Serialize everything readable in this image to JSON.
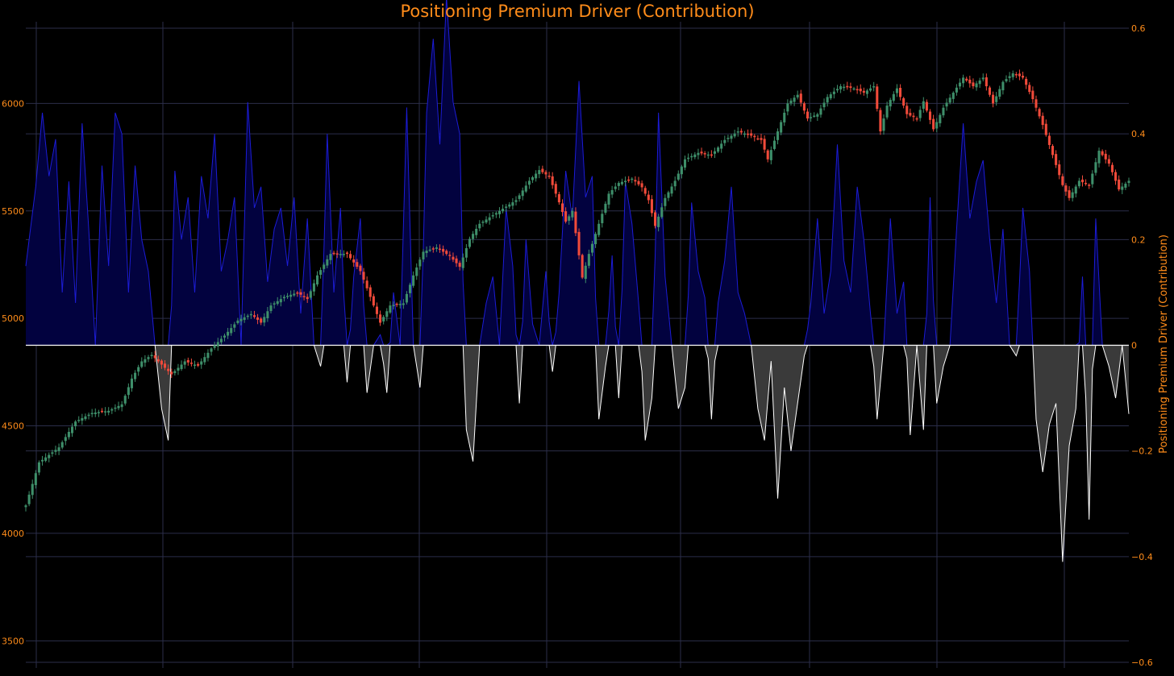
{
  "chart_data": {
    "type": "candlestick",
    "title": "Positioning Premium Driver (Contribution)",
    "y_left": {
      "label": "",
      "ticks": [
        3500,
        4000,
        4500,
        5000,
        5500,
        6000
      ],
      "range": [
        3400,
        6350
      ]
    },
    "y_right": {
      "label": "Positioning Premium Driver (Contribution)",
      "ticks": [
        0.6,
        0.4,
        0.2,
        0,
        -0.2,
        -0.4,
        -0.6
      ],
      "tick_labels": [
        "0.6",
        "0.4",
        "0.2",
        "0",
        "−0.2",
        "−0.4",
        "−0.6"
      ],
      "range": [
        -0.6,
        0.6
      ]
    },
    "grid": true,
    "legend": "none",
    "colors": {
      "background": "#000000",
      "text": "#ff8c1a",
      "grid": "#2b2e4a",
      "up": "#3e8f6a",
      "down": "#f04a3a",
      "positive_line": "#1c1cd6",
      "positive_fill": "#02023f",
      "negative_line": "#ffffff",
      "negative_fill": "#3a3a3a"
    },
    "price_series": {
      "name": "",
      "anchors": [
        [
          0,
          4130
        ],
        [
          4,
          4330
        ],
        [
          10,
          4400
        ],
        [
          15,
          4520
        ],
        [
          20,
          4560
        ],
        [
          25,
          4570
        ],
        [
          29,
          4600
        ],
        [
          32,
          4720
        ],
        [
          35,
          4800
        ],
        [
          38,
          4830
        ],
        [
          40,
          4800
        ],
        [
          44,
          4740
        ],
        [
          48,
          4800
        ],
        [
          52,
          4780
        ],
        [
          56,
          4860
        ],
        [
          60,
          4920
        ],
        [
          64,
          4990
        ],
        [
          68,
          5020
        ],
        [
          71,
          4980
        ],
        [
          74,
          5060
        ],
        [
          78,
          5100
        ],
        [
          82,
          5120
        ],
        [
          85,
          5090
        ],
        [
          88,
          5200
        ],
        [
          92,
          5300
        ],
        [
          97,
          5300
        ],
        [
          101,
          5220
        ],
        [
          104,
          5100
        ],
        [
          107,
          4980
        ],
        [
          110,
          5060
        ],
        [
          114,
          5070
        ],
        [
          117,
          5200
        ],
        [
          120,
          5310
        ],
        [
          124,
          5330
        ],
        [
          128,
          5290
        ],
        [
          131,
          5240
        ],
        [
          134,
          5370
        ],
        [
          137,
          5440
        ],
        [
          140,
          5470
        ],
        [
          144,
          5510
        ],
        [
          148,
          5550
        ],
        [
          152,
          5640
        ],
        [
          155,
          5690
        ],
        [
          158,
          5660
        ],
        [
          161,
          5540
        ],
        [
          163,
          5450
        ],
        [
          165,
          5500
        ],
        [
          168,
          5190
        ],
        [
          170,
          5300
        ],
        [
          173,
          5440
        ],
        [
          176,
          5580
        ],
        [
          179,
          5630
        ],
        [
          183,
          5650
        ],
        [
          186,
          5610
        ],
        [
          188,
          5550
        ],
        [
          190,
          5430
        ],
        [
          193,
          5560
        ],
        [
          196,
          5640
        ],
        [
          199,
          5740
        ],
        [
          203,
          5770
        ],
        [
          207,
          5760
        ],
        [
          211,
          5830
        ],
        [
          215,
          5870
        ],
        [
          219,
          5850
        ],
        [
          222,
          5830
        ],
        [
          224,
          5740
        ],
        [
          227,
          5870
        ],
        [
          230,
          6000
        ],
        [
          233,
          6040
        ],
        [
          236,
          5930
        ],
        [
          239,
          5950
        ],
        [
          242,
          6030
        ],
        [
          246,
          6080
        ],
        [
          250,
          6070
        ],
        [
          253,
          6050
        ],
        [
          256,
          6080
        ],
        [
          258,
          5870
        ],
        [
          260,
          5990
        ],
        [
          263,
          6070
        ],
        [
          266,
          5950
        ],
        [
          269,
          5930
        ],
        [
          271,
          6010
        ],
        [
          274,
          5880
        ],
        [
          277,
          5980
        ],
        [
          280,
          6050
        ],
        [
          283,
          6120
        ],
        [
          286,
          6080
        ],
        [
          289,
          6120
        ],
        [
          292,
          6000
        ],
        [
          295,
          6100
        ],
        [
          298,
          6140
        ],
        [
          301,
          6120
        ],
        [
          304,
          6020
        ],
        [
          307,
          5900
        ],
        [
          310,
          5760
        ],
        [
          313,
          5620
        ],
        [
          315,
          5560
        ],
        [
          318,
          5640
        ],
        [
          321,
          5620
        ],
        [
          324,
          5780
        ],
        [
          327,
          5720
        ],
        [
          330,
          5600
        ],
        [
          333,
          5640
        ]
      ]
    },
    "contribution_series": {
      "name": "",
      "anchors": [
        [
          0,
          0.15
        ],
        [
          3,
          0.3
        ],
        [
          5,
          0.44
        ],
        [
          7,
          0.32
        ],
        [
          9,
          0.39
        ],
        [
          11,
          0.1
        ],
        [
          13,
          0.31
        ],
        [
          15,
          0.08
        ],
        [
          17,
          0.42
        ],
        [
          19,
          0.22
        ],
        [
          21,
          0.0
        ],
        [
          23,
          0.34
        ],
        [
          25,
          0.15
        ],
        [
          27,
          0.44
        ],
        [
          29,
          0.4
        ],
        [
          31,
          0.1
        ],
        [
          33,
          0.34
        ],
        [
          35,
          0.2
        ],
        [
          37,
          0.14
        ],
        [
          39,
          0.0
        ],
        [
          41,
          -0.12
        ],
        [
          43,
          -0.18
        ],
        [
          45,
          0.33
        ],
        [
          47,
          0.2
        ],
        [
          49,
          0.28
        ],
        [
          51,
          0.1
        ],
        [
          53,
          0.32
        ],
        [
          55,
          0.24
        ],
        [
          57,
          0.4
        ],
        [
          59,
          0.14
        ],
        [
          61,
          0.2
        ],
        [
          63,
          0.28
        ],
        [
          65,
          0.0
        ],
        [
          67,
          0.46
        ],
        [
          69,
          0.26
        ],
        [
          71,
          0.3
        ],
        [
          73,
          0.12
        ],
        [
          75,
          0.22
        ],
        [
          77,
          0.26
        ],
        [
          79,
          0.15
        ],
        [
          81,
          0.28
        ],
        [
          83,
          0.06
        ],
        [
          85,
          0.24
        ],
        [
          87,
          0.0
        ],
        [
          89,
          -0.04
        ],
        [
          91,
          0.4
        ],
        [
          93,
          0.1
        ],
        [
          95,
          0.26
        ],
        [
          97,
          -0.07
        ],
        [
          99,
          0.13
        ],
        [
          101,
          0.24
        ],
        [
          103,
          -0.09
        ],
        [
          105,
          0.0
        ],
        [
          107,
          0.02
        ],
        [
          109,
          -0.09
        ],
        [
          111,
          0.1
        ],
        [
          113,
          0.0
        ],
        [
          115,
          0.45
        ],
        [
          117,
          0.0
        ],
        [
          119,
          -0.08
        ],
        [
          121,
          0.44
        ],
        [
          123,
          0.58
        ],
        [
          125,
          0.38
        ],
        [
          127,
          0.66
        ],
        [
          129,
          0.46
        ],
        [
          131,
          0.4
        ],
        [
          133,
          -0.16
        ],
        [
          135,
          -0.22
        ],
        [
          137,
          0.0
        ],
        [
          139,
          0.08
        ],
        [
          141,
          0.13
        ],
        [
          143,
          0.0
        ],
        [
          145,
          0.26
        ],
        [
          147,
          0.15
        ],
        [
          149,
          -0.11
        ],
        [
          151,
          0.2
        ],
        [
          153,
          0.04
        ],
        [
          155,
          0.0
        ],
        [
          157,
          0.14
        ],
        [
          159,
          -0.05
        ],
        [
          161,
          0.1
        ],
        [
          163,
          0.33
        ],
        [
          165,
          0.24
        ],
        [
          167,
          0.5
        ],
        [
          169,
          0.28
        ],
        [
          171,
          0.32
        ],
        [
          173,
          -0.14
        ],
        [
          175,
          -0.04
        ],
        [
          177,
          0.17
        ],
        [
          179,
          -0.1
        ],
        [
          181,
          0.31
        ],
        [
          183,
          0.23
        ],
        [
          185,
          0.08
        ],
        [
          187,
          -0.18
        ],
        [
          189,
          -0.1
        ],
        [
          191,
          0.44
        ],
        [
          193,
          0.13
        ],
        [
          195,
          0.0
        ],
        [
          197,
          -0.12
        ],
        [
          199,
          -0.08
        ],
        [
          201,
          0.27
        ],
        [
          203,
          0.14
        ],
        [
          205,
          0.09
        ],
        [
          207,
          -0.14
        ],
        [
          209,
          0.08
        ],
        [
          211,
          0.16
        ],
        [
          213,
          0.3
        ],
        [
          215,
          0.1
        ],
        [
          217,
          0.06
        ],
        [
          219,
          0.0
        ],
        [
          221,
          -0.12
        ],
        [
          223,
          -0.18
        ],
        [
          225,
          -0.03
        ],
        [
          227,
          -0.29
        ],
        [
          229,
          -0.08
        ],
        [
          231,
          -0.2
        ],
        [
          233,
          -0.11
        ],
        [
          235,
          -0.02
        ],
        [
          237,
          0.08
        ],
        [
          239,
          0.24
        ],
        [
          241,
          0.06
        ],
        [
          243,
          0.14
        ],
        [
          245,
          0.38
        ],
        [
          247,
          0.16
        ],
        [
          249,
          0.1
        ],
        [
          251,
          0.3
        ],
        [
          253,
          0.2
        ],
        [
          255,
          0.06
        ],
        [
          257,
          -0.14
        ],
        [
          259,
          0.0
        ],
        [
          261,
          0.24
        ],
        [
          263,
          0.06
        ],
        [
          265,
          0.12
        ],
        [
          267,
          -0.17
        ],
        [
          269,
          0.0
        ],
        [
          271,
          -0.16
        ],
        [
          273,
          0.28
        ],
        [
          275,
          -0.11
        ],
        [
          277,
          -0.04
        ],
        [
          279,
          0.0
        ],
        [
          281,
          0.22
        ],
        [
          283,
          0.42
        ],
        [
          285,
          0.24
        ],
        [
          287,
          0.31
        ],
        [
          289,
          0.35
        ],
        [
          291,
          0.2
        ],
        [
          293,
          0.08
        ],
        [
          295,
          0.22
        ],
        [
          297,
          0.0
        ],
        [
          299,
          -0.02
        ],
        [
          301,
          0.26
        ],
        [
          303,
          0.14
        ],
        [
          305,
          -0.14
        ],
        [
          307,
          -0.24
        ],
        [
          309,
          -0.15
        ],
        [
          311,
          -0.11
        ],
        [
          313,
          -0.41
        ],
        [
          315,
          -0.19
        ],
        [
          317,
          -0.12
        ],
        [
          319,
          0.13
        ],
        [
          321,
          -0.33
        ],
        [
          323,
          0.24
        ],
        [
          325,
          0.0
        ],
        [
          327,
          -0.04
        ],
        [
          329,
          -0.1
        ],
        [
          331,
          0.0
        ],
        [
          333,
          -0.13
        ]
      ]
    }
  }
}
